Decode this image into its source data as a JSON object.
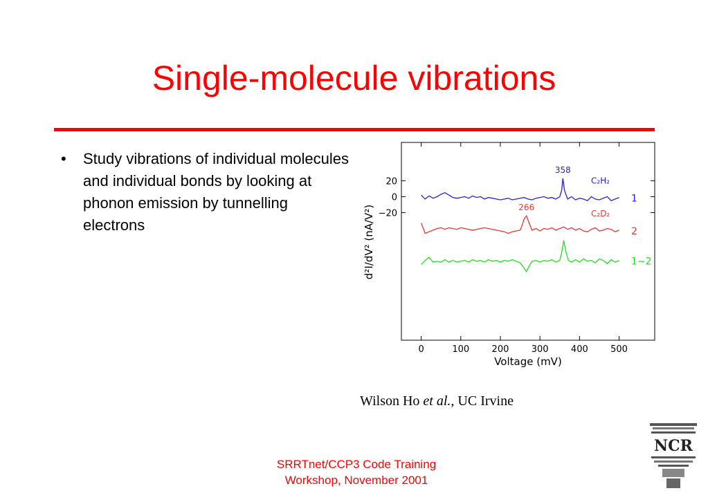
{
  "slide": {
    "title": "Single-molecule vibrations",
    "bullets": [
      "Study vibrations of individual molecules and individual bonds by looking at phonon emission by tunnelling electrons"
    ],
    "bullet_symbol": "•",
    "credit": {
      "author": "Wilson Ho",
      "etal": "et al.",
      "affiliation": ", UC Irvine"
    },
    "footer": {
      "line1": "SRRTnet/CCP3 Code Training",
      "line2": "Workshop, November 2001"
    },
    "colors": {
      "title": "#ff0000",
      "rule": "#ff0000",
      "footer": "#ff0000"
    },
    "logo": {
      "icon": "ncr-logo-icon",
      "text": "NCR"
    }
  },
  "chart_data": {
    "type": "line",
    "xlabel": "Voltage  (mV)",
    "ylabel": "d²I/dV²  (nA/V²)",
    "xlim": [
      -50,
      590
    ],
    "ylim": [
      -180,
      68
    ],
    "x_ticks": [
      0,
      100,
      200,
      300,
      400,
      500
    ],
    "x_tick_labels": [
      "0",
      "100",
      "200",
      "300",
      "400",
      "500"
    ],
    "y_ticks": [
      20,
      0,
      -20
    ],
    "y_tick_labels": [
      "20",
      "0",
      "−20"
    ],
    "grid": false,
    "series": [
      {
        "name": "1",
        "formula": "C₂H₂",
        "color": "#2222dd",
        "peak_label": "358",
        "x": [
          0,
          10,
          20,
          30,
          40,
          50,
          60,
          70,
          80,
          90,
          100,
          110,
          120,
          130,
          140,
          150,
          160,
          170,
          180,
          190,
          200,
          210,
          220,
          230,
          240,
          250,
          260,
          270,
          280,
          290,
          300,
          310,
          320,
          330,
          340,
          350,
          355,
          358,
          362,
          370,
          380,
          390,
          400,
          410,
          420,
          430,
          440,
          450,
          460,
          470,
          480,
          490,
          500
        ],
        "y": [
          2,
          -3,
          1,
          -2,
          0,
          3,
          5,
          2,
          -1,
          -2,
          -1,
          0,
          -2,
          1,
          -1,
          0,
          -3,
          -1,
          -2,
          -3,
          -4,
          -3,
          -2,
          -4,
          -3,
          -2,
          -1,
          -3,
          -4,
          -2,
          -1,
          0,
          -2,
          -1,
          -3,
          0,
          8,
          23,
          8,
          -3,
          0,
          -4,
          -2,
          -3,
          -5,
          0,
          -3,
          -4,
          -2,
          0,
          -5,
          -3,
          -1
        ]
      },
      {
        "name": "2",
        "formula": "C₂D₂",
        "color": "#ee3333",
        "peak_label": "266",
        "x": [
          0,
          10,
          20,
          30,
          40,
          50,
          60,
          70,
          80,
          90,
          100,
          110,
          120,
          130,
          140,
          150,
          160,
          170,
          180,
          190,
          200,
          210,
          220,
          230,
          240,
          250,
          255,
          260,
          266,
          272,
          280,
          290,
          300,
          310,
          320,
          330,
          340,
          350,
          360,
          370,
          380,
          390,
          400,
          410,
          420,
          430,
          440,
          450,
          460,
          470,
          480,
          490,
          500
        ],
        "y": [
          -33,
          -46,
          -44,
          -42,
          -40,
          -39,
          -41,
          -39,
          -40,
          -41,
          -39,
          -40,
          -41,
          -42,
          -41,
          -40,
          -39,
          -40,
          -41,
          -42,
          -43,
          -44,
          -46,
          -44,
          -43,
          -42,
          -36,
          -28,
          -24,
          -32,
          -42,
          -40,
          -43,
          -40,
          -41,
          -39,
          -42,
          -40,
          -38,
          -41,
          -39,
          -42,
          -40,
          -43,
          -44,
          -41,
          -39,
          -43,
          -42,
          -40,
          -41,
          -44,
          -42
        ]
      },
      {
        "name": "1−2",
        "formula": "",
        "color": "#22dd22",
        "peak_label": "",
        "x": [
          0,
          10,
          20,
          30,
          40,
          50,
          60,
          70,
          80,
          90,
          100,
          110,
          120,
          130,
          140,
          150,
          160,
          170,
          180,
          190,
          200,
          210,
          220,
          230,
          240,
          250,
          258,
          266,
          272,
          280,
          290,
          300,
          310,
          320,
          330,
          340,
          350,
          355,
          360,
          366,
          372,
          380,
          390,
          400,
          410,
          420,
          430,
          440,
          450,
          460,
          470,
          480,
          490,
          500
        ],
        "y": [
          -85,
          -80,
          -76,
          -82,
          -81,
          -82,
          -79,
          -82,
          -80,
          -82,
          -81,
          -80,
          -82,
          -79,
          -81,
          -80,
          -82,
          -79,
          -81,
          -80,
          -82,
          -80,
          -81,
          -79,
          -81,
          -83,
          -88,
          -94,
          -88,
          -81,
          -80,
          -82,
          -80,
          -81,
          -79,
          -82,
          -80,
          -70,
          -55,
          -70,
          -80,
          -82,
          -79,
          -82,
          -78,
          -81,
          -80,
          -83,
          -78,
          -80,
          -84,
          -79,
          -82,
          -80
        ]
      }
    ]
  }
}
